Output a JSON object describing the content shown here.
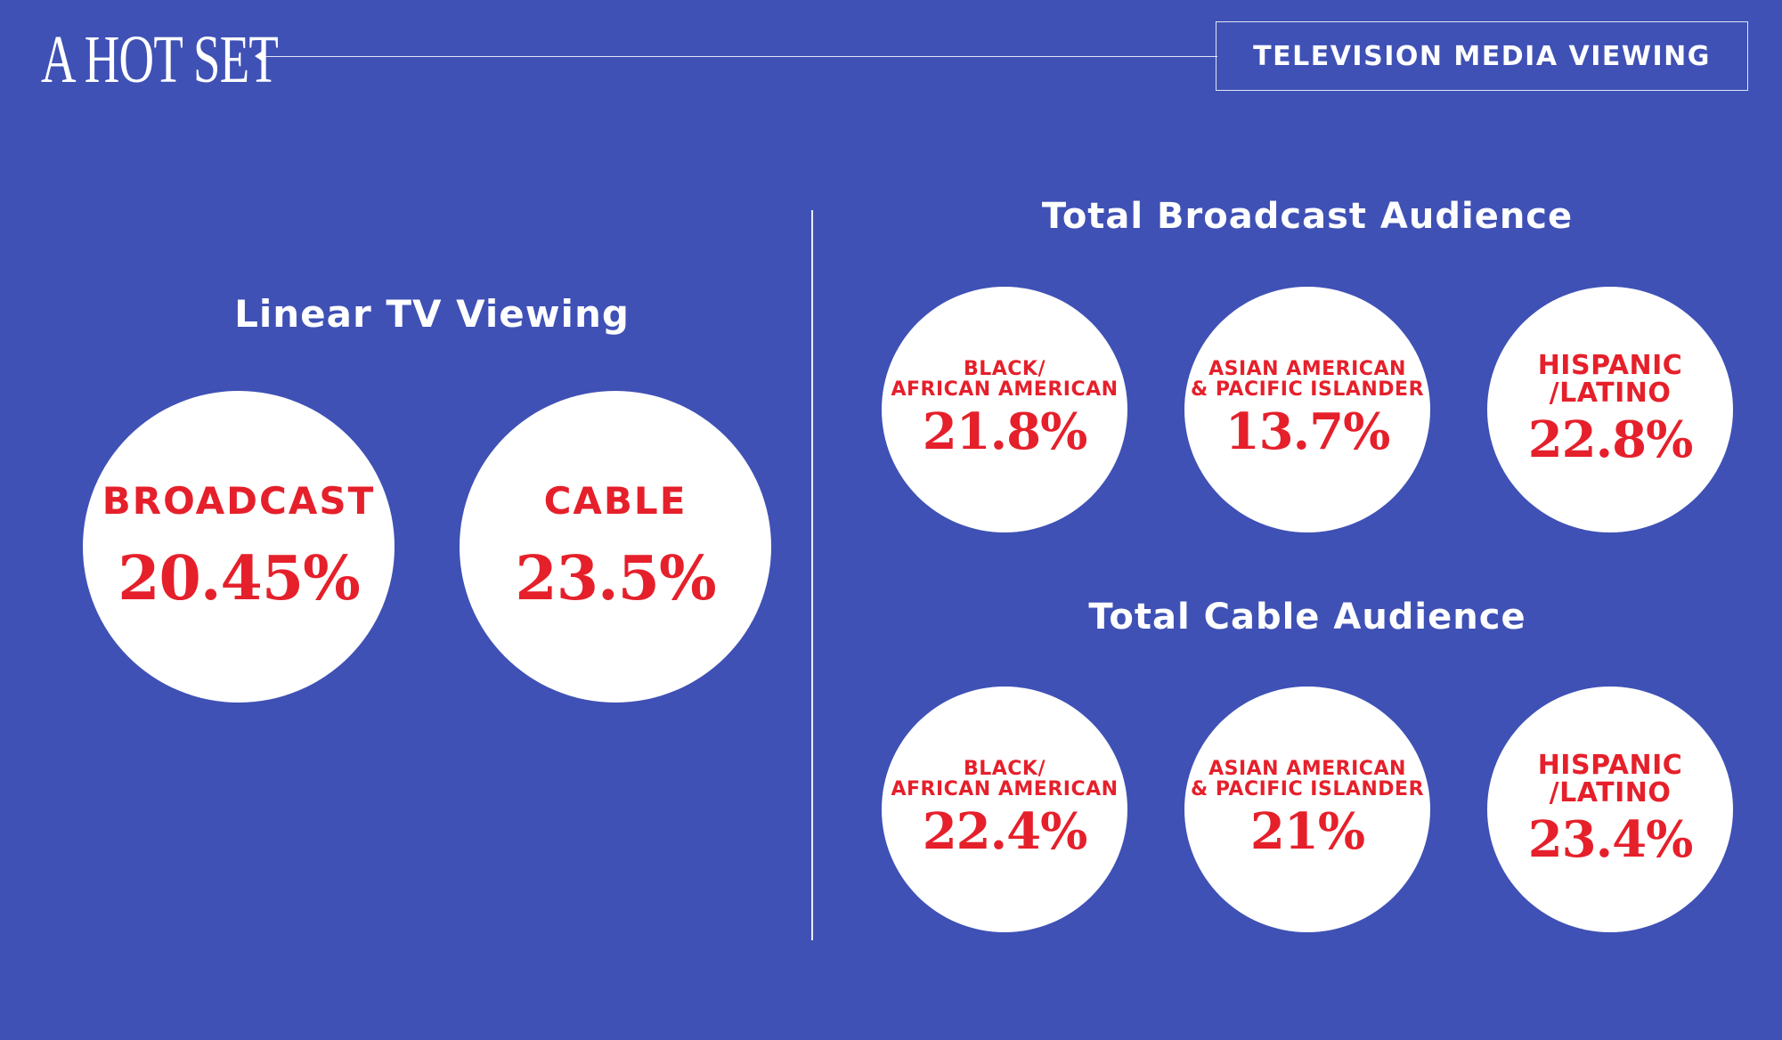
{
  "header": {
    "logo_text": "A HOT SET",
    "tag": "TELEVISION MEDIA VIEWING"
  },
  "linear": {
    "title": "Linear TV Viewing",
    "items": [
      {
        "label": "BROADCAST",
        "value": "20.45%"
      },
      {
        "label": "CABLE",
        "value": "23.5%"
      }
    ]
  },
  "broadcast_audience": {
    "title": "Total Broadcast Audience",
    "items": [
      {
        "label_line1": "BLACK/",
        "label_line2": "AFRICAN AMERICAN",
        "value": "21.8%"
      },
      {
        "label_line1": "ASIAN AMERICAN",
        "label_line2": "& PACIFIC ISLANDER",
        "value": "13.7%"
      },
      {
        "label_line1": "HISPANIC",
        "label_line2": "/LATINO",
        "value": "22.8%"
      }
    ]
  },
  "cable_audience": {
    "title": "Total Cable Audience",
    "items": [
      {
        "label_line1": "BLACK/",
        "label_line2": "AFRICAN AMERICAN",
        "value": "22.4%"
      },
      {
        "label_line1": "ASIAN AMERICAN",
        "label_line2": "& PACIFIC ISLANDER",
        "value": "21%"
      },
      {
        "label_line1": "HISPANIC",
        "label_line2": "/LATINO",
        "value": "23.4%"
      }
    ]
  },
  "colors": {
    "background": "#3f51b5",
    "circle": "#ffffff",
    "accent_red": "#e5202b",
    "text": "#ffffff"
  }
}
